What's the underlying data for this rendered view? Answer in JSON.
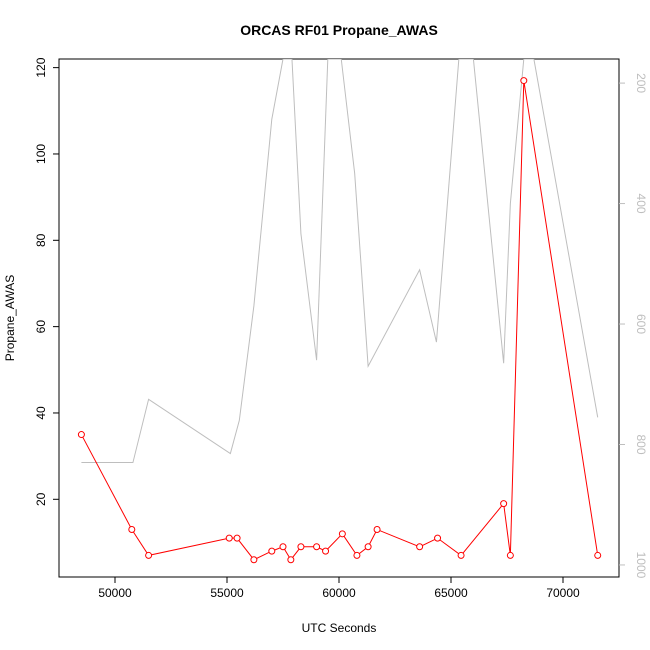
{
  "chart_data": {
    "type": "line",
    "title": "ORCAS RF01 Propane_AWAS",
    "xlabel": "UTC Seconds",
    "ylabel": "Propane_AWAS",
    "xlim": [
      47500,
      72500
    ],
    "ylim": [
      2,
      122
    ],
    "y2lim": [
      1020,
      160
    ],
    "x_ticks": [
      50000,
      55000,
      60000,
      65000,
      70000
    ],
    "y_ticks": [
      20,
      40,
      60,
      80,
      100,
      120
    ],
    "y2_ticks": [
      200,
      400,
      600,
      800,
      1000
    ],
    "grid": false,
    "series": [
      {
        "axis": "left",
        "color": "#ff0000",
        "marker": "open-circle",
        "x": [
          48500,
          50750,
          51500,
          55100,
          55450,
          56200,
          57000,
          57500,
          57850,
          58300,
          59000,
          59400,
          60150,
          60800,
          61300,
          61700,
          63600,
          64400,
          65450,
          67350,
          67650,
          68250,
          71550
        ],
        "y": [
          35,
          13,
          7,
          11,
          11,
          6,
          8,
          9,
          6,
          9,
          9,
          8,
          12,
          7,
          9,
          13,
          9,
          11,
          7,
          19,
          7,
          117,
          7
        ]
      },
      {
        "axis": "right",
        "color": "#bebebe",
        "marker": "none",
        "x": [
          48500,
          50800,
          51500,
          55150,
          55550,
          56200,
          57000,
          57500,
          57900,
          58300,
          59000,
          59500,
          60100,
          60700,
          61300,
          63600,
          64350,
          65350,
          66000,
          67350,
          67650,
          68250,
          68700,
          71550
        ],
        "y": [
          830,
          830,
          725,
          815,
          760,
          570,
          260,
          160,
          160,
          450,
          660,
          160,
          160,
          350,
          670,
          510,
          630,
          160,
          160,
          665,
          400,
          160,
          160,
          755
        ]
      }
    ]
  }
}
